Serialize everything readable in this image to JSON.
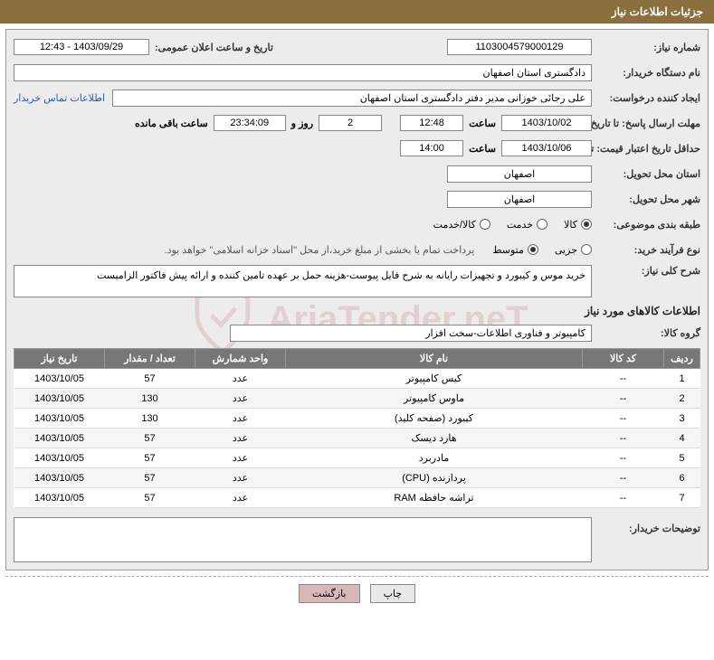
{
  "header": {
    "title": "جزئیات اطلاعات نیاز"
  },
  "fields": {
    "need_number": {
      "label": "شماره نیاز:",
      "value": "1103004579000129"
    },
    "announce_datetime": {
      "label": "تاریخ و ساعت اعلان عمومی:",
      "value": "1403/09/29 - 12:43"
    },
    "buyer_org": {
      "label": "نام دستگاه خریدار:",
      "value": "دادگستری استان اصفهان"
    },
    "requester": {
      "label": "ایجاد کننده درخواست:",
      "value": "علی رجائی خوزانی مدیر دفتر دادگستری استان اصفهان"
    },
    "contact_link": "اطلاعات تماس خریدار",
    "response_deadline": {
      "label": "مهلت ارسال پاسخ: تا تاریخ:",
      "date": "1403/10/02",
      "time_label": "ساعت",
      "time": "12:48",
      "days": "2",
      "days_suffix": "روز و",
      "remaining_time": "23:34:09",
      "remaining_suffix": "ساعت باقی مانده"
    },
    "price_validity": {
      "label": "حداقل تاریخ اعتبار قیمت: تا تاریخ:",
      "date": "1403/10/06",
      "time_label": "ساعت",
      "time": "14:00"
    },
    "delivery_province": {
      "label": "استان محل تحویل:",
      "value": "اصفهان"
    },
    "delivery_city": {
      "label": "شهر محل تحویل:",
      "value": "اصفهان"
    },
    "subject_class": {
      "label": "طبقه بندی موضوعی:",
      "options": [
        "کالا",
        "خدمت",
        "کالا/خدمت"
      ],
      "selected": 0
    },
    "purchase_type": {
      "label": "نوع فرآیند خرید:",
      "options": [
        "جزیی",
        "متوسط"
      ],
      "selected": 1,
      "note": "پرداخت تمام یا بخشی از مبلغ خرید،از محل \"اسناد خزانه اسلامی\" خواهد بود."
    },
    "general_desc": {
      "label": "شرح کلی نیاز:",
      "value": "خرید موس و کیبورد و تجهیزات رایانه به شرح فایل پیوست-هزینه حمل بر عهده تامین کننده و ارائه پیش فاکتور الزامیست"
    },
    "goods_section_title": "اطلاعات کالاهای مورد نیاز",
    "goods_group": {
      "label": "گروه کالا:",
      "value": "کامپیوتر و فناوری اطلاعات-سخت افزار"
    },
    "buyer_notes": {
      "label": "توضیحات خریدار:",
      "value": ""
    }
  },
  "table": {
    "columns": [
      "ردیف",
      "کد کالا",
      "نام کالا",
      "واحد شمارش",
      "تعداد / مقدار",
      "تاریخ نیاز"
    ],
    "rows": [
      [
        "1",
        "--",
        "کیس کامپیوتر",
        "عدد",
        "57",
        "1403/10/05"
      ],
      [
        "2",
        "--",
        "ماوس کامپیوتر",
        "عدد",
        "130",
        "1403/10/05"
      ],
      [
        "3",
        "--",
        "کیبورد (صفحه کلید)",
        "عدد",
        "130",
        "1403/10/05"
      ],
      [
        "4",
        "--",
        "هارد دیسک",
        "عدد",
        "57",
        "1403/10/05"
      ],
      [
        "5",
        "--",
        "مادربرد",
        "عدد",
        "57",
        "1403/10/05"
      ],
      [
        "6",
        "--",
        "پردازنده (CPU)",
        "عدد",
        "57",
        "1403/10/05"
      ],
      [
        "7",
        "--",
        "تراشه حافظه RAM",
        "عدد",
        "57",
        "1403/10/05"
      ]
    ]
  },
  "buttons": {
    "print": "چاپ",
    "back": "بازگشت"
  },
  "watermark": "AriaTender.neT",
  "colors": {
    "header_bg": "#8b6f3e",
    "content_bg": "#ececec",
    "th_bg": "#777777",
    "link": "#2a5db0"
  }
}
